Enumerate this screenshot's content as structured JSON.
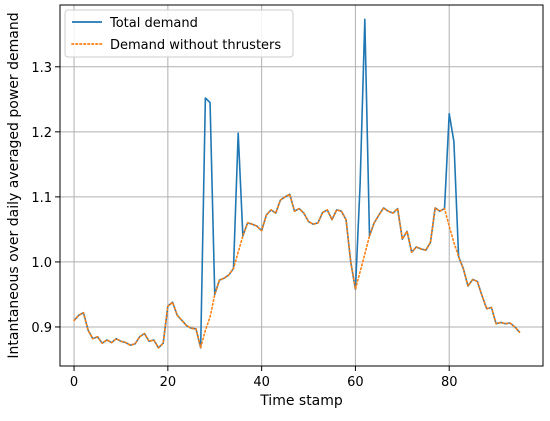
{
  "colors": {
    "total": "#1f77b4",
    "without": "#ff7f0e",
    "grid": "#b0b0b0"
  },
  "chart_data": {
    "type": "line",
    "title": "",
    "xlabel": "Time stamp",
    "ylabel": "Intantaneous over daily averaged power demand",
    "xlim": [
      -3,
      100
    ],
    "ylim": [
      0.84,
      1.395
    ],
    "xticks": [
      0,
      20,
      40,
      60,
      80
    ],
    "yticks": [
      0.9,
      1.0,
      1.1,
      1.2,
      1.3
    ],
    "xtick_labels": [
      "0",
      "20",
      "40",
      "60",
      "80"
    ],
    "ytick_labels": [
      "0.9",
      "1.0",
      "1.1",
      "1.2",
      "1.3"
    ],
    "grid": true,
    "legend": "top-left",
    "x": [
      0,
      1,
      2,
      3,
      4,
      5,
      6,
      7,
      8,
      9,
      10,
      11,
      12,
      13,
      14,
      15,
      16,
      17,
      18,
      19,
      20,
      21,
      22,
      23,
      24,
      25,
      26,
      27,
      28,
      29,
      30,
      31,
      32,
      33,
      34,
      35,
      36,
      37,
      38,
      39,
      40,
      41,
      42,
      43,
      44,
      45,
      46,
      47,
      48,
      49,
      50,
      51,
      52,
      53,
      54,
      55,
      56,
      57,
      58,
      59,
      60,
      61,
      62,
      63,
      64,
      65,
      66,
      67,
      68,
      69,
      70,
      71,
      72,
      73,
      74,
      75,
      76,
      77,
      78,
      79,
      80,
      81,
      82,
      83,
      84,
      85,
      86,
      87,
      88,
      89,
      90,
      91,
      92,
      93,
      94,
      95
    ],
    "series": [
      {
        "name": "Total demand",
        "style": "solid",
        "values": [
          0.91,
          0.918,
          0.922,
          0.895,
          0.882,
          0.885,
          0.875,
          0.88,
          0.876,
          0.882,
          0.878,
          0.876,
          0.872,
          0.874,
          0.885,
          0.89,
          0.878,
          0.88,
          0.868,
          0.875,
          0.932,
          0.938,
          0.918,
          0.91,
          0.902,
          0.898,
          0.897,
          0.868,
          1.252,
          1.245,
          0.95,
          0.972,
          0.975,
          0.98,
          0.99,
          1.198,
          1.04,
          1.06,
          1.058,
          1.055,
          1.048,
          1.072,
          1.08,
          1.075,
          1.095,
          1.1,
          1.104,
          1.078,
          1.082,
          1.075,
          1.062,
          1.058,
          1.06,
          1.076,
          1.08,
          1.065,
          1.08,
          1.078,
          1.065,
          1.0,
          0.958,
          1.12,
          1.373,
          1.04,
          1.06,
          1.072,
          1.083,
          1.078,
          1.075,
          1.082,
          1.035,
          1.047,
          1.015,
          1.023,
          1.02,
          1.018,
          1.03,
          1.083,
          1.078,
          1.082,
          1.228,
          1.185,
          1.008,
          0.99,
          0.963,
          0.973,
          0.97,
          0.948,
          0.928,
          0.93,
          0.905,
          0.907,
          0.905,
          0.906,
          0.9,
          0.892
        ]
      },
      {
        "name": "Demand without thrusters",
        "style": "dotted",
        "values": [
          0.91,
          0.918,
          0.922,
          0.895,
          0.882,
          0.885,
          0.875,
          0.88,
          0.876,
          0.882,
          0.878,
          0.876,
          0.872,
          0.874,
          0.885,
          0.89,
          0.878,
          0.88,
          0.868,
          0.875,
          0.932,
          0.938,
          0.918,
          0.91,
          0.902,
          0.898,
          0.897,
          0.868,
          0.895,
          0.915,
          0.95,
          0.972,
          0.975,
          0.98,
          0.99,
          1.015,
          1.04,
          1.06,
          1.058,
          1.055,
          1.048,
          1.072,
          1.08,
          1.075,
          1.095,
          1.1,
          1.104,
          1.078,
          1.082,
          1.075,
          1.062,
          1.058,
          1.06,
          1.076,
          1.08,
          1.065,
          1.08,
          1.078,
          1.065,
          1.0,
          0.958,
          0.985,
          1.012,
          1.04,
          1.06,
          1.072,
          1.083,
          1.078,
          1.075,
          1.082,
          1.035,
          1.047,
          1.015,
          1.023,
          1.02,
          1.018,
          1.03,
          1.083,
          1.078,
          1.082,
          1.055,
          1.03,
          1.008,
          0.99,
          0.963,
          0.973,
          0.97,
          0.948,
          0.928,
          0.93,
          0.905,
          0.907,
          0.905,
          0.906,
          0.9,
          0.892
        ]
      }
    ]
  }
}
